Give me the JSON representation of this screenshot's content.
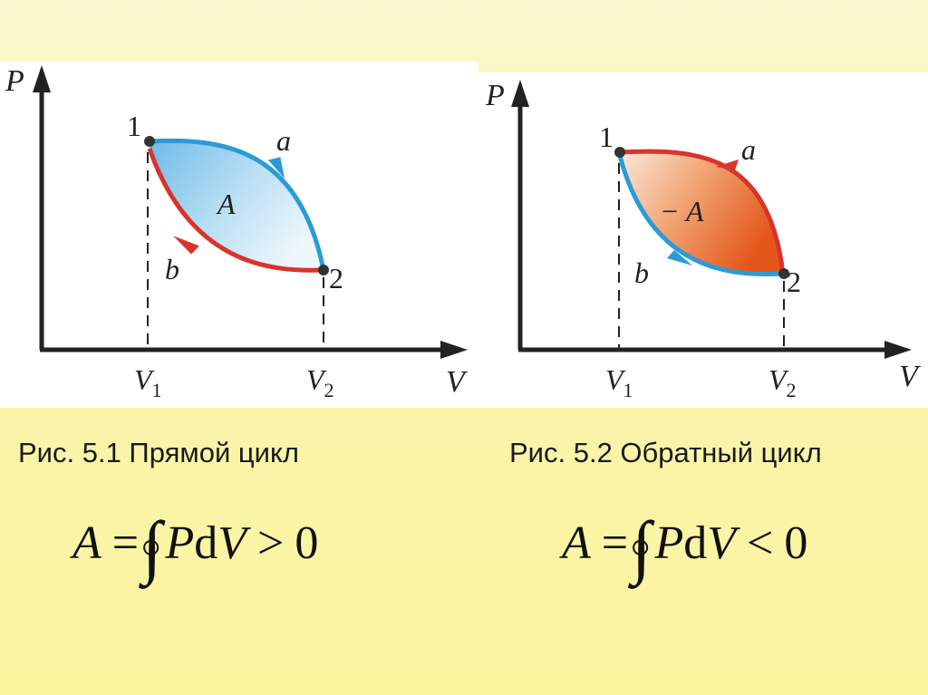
{
  "colors": {
    "blue_curve": "#2b9bd8",
    "red_curve": "#d9342b",
    "blue_fill_start": "#7cc2ea",
    "orange_fill_end": "#e8601a",
    "axis": "#222222"
  },
  "fig1": {
    "axis_p": "P",
    "axis_v": "V",
    "point1": "1",
    "point2": "2",
    "curve_a": "a",
    "curve_b": "b",
    "area": "A",
    "v1": "V",
    "v1_sub": "1",
    "v2": "V",
    "v2_sub": "2",
    "caption": "Рис. 5.1 Прямой цикл",
    "formula": {
      "lhs": "A",
      "eq": "=",
      "integral": "∫",
      "p": "P",
      "d": "d",
      "v": "V",
      "rel": ">",
      "rhs": "0"
    }
  },
  "fig2": {
    "axis_p": "P",
    "axis_v": "V",
    "point1": "1",
    "point2": "2",
    "curve_a": "a",
    "curve_b": "b",
    "area": "− A",
    "v1": "V",
    "v1_sub": "1",
    "v2": "V",
    "v2_sub": "2",
    "caption": "Рис. 5.2  Обратный цикл",
    "formula": {
      "lhs": "A",
      "eq": "=",
      "integral": "∫",
      "p": "P",
      "d": "d",
      "v": "V",
      "rel": "<",
      "rhs": "0"
    }
  }
}
